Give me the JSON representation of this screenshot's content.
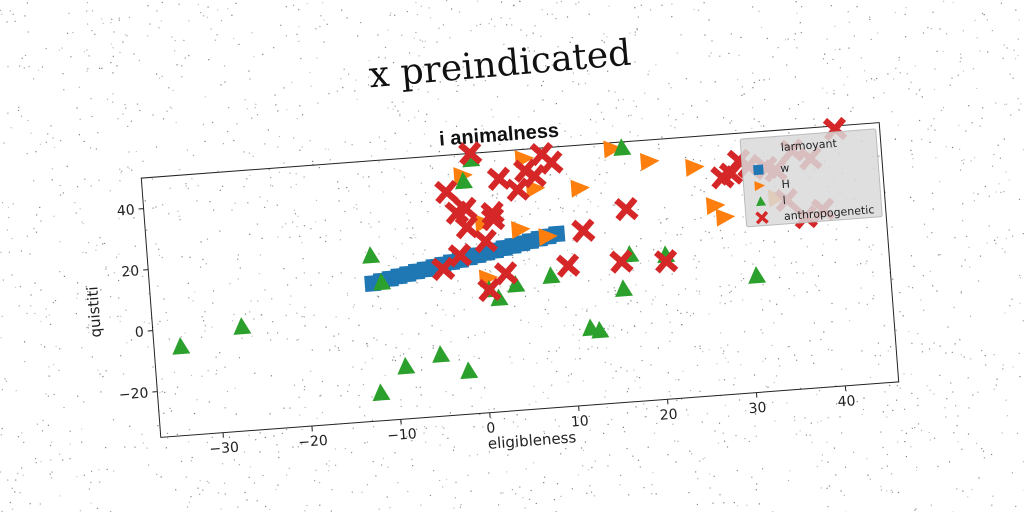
{
  "suptitle": "x preindicated",
  "chart_data": {
    "type": "scatter",
    "title": "i animalness",
    "xlabel": "eligibleness",
    "ylabel": "quistiti",
    "xlim": [
      -37,
      46
    ],
    "ylim": [
      -35,
      50
    ],
    "xticks": [
      -30,
      -20,
      -10,
      0,
      10,
      20,
      30,
      40
    ],
    "yticks": [
      -20,
      0,
      20,
      40
    ],
    "grid": false,
    "legend": {
      "title": "larmoyant",
      "position": "top-right"
    },
    "colors": {
      "w": "#1f77b4",
      "H": "#ff7f0e",
      "l": "#2ca02c",
      "anthropogenetic": "#d62728"
    },
    "series": [
      {
        "name": "w",
        "marker": "square",
        "x": [
          -12,
          -11,
          -10,
          -9,
          -8,
          -7,
          -6,
          -5,
          -4,
          -3,
          -2,
          -1,
          0,
          1,
          2,
          3,
          4,
          5,
          6,
          7,
          8,
          9
        ],
        "y": [
          10,
          10.6,
          11.1,
          11.7,
          12.2,
          12.8,
          13.3,
          13.9,
          14.4,
          15,
          15.5,
          16.1,
          16.6,
          17.2,
          17.7,
          18.3,
          18.8,
          19.4,
          19.9,
          20.5,
          21,
          21.6
        ]
      },
      {
        "name": "H",
        "marker": "triangle-right",
        "x": [
          -1,
          1,
          1,
          5,
          6,
          7,
          8,
          12,
          14,
          15,
          16,
          19,
          20,
          24,
          25,
          27,
          27,
          28,
          34,
          40
        ],
        "y": [
          43,
          27,
          9,
          24,
          47,
          37,
          21,
          36,
          55,
          53,
          48,
          52,
          43,
          53,
          40,
          27,
          52,
          23,
          28,
          53
        ]
      },
      {
        "name": "l",
        "marker": "triangle-up",
        "x": [
          -34,
          -27,
          -12,
          -12,
          -11,
          -9,
          -5,
          -2,
          -1,
          0,
          1,
          2,
          4,
          8,
          12,
          13,
          16,
          17,
          17,
          21,
          31
        ],
        "y": [
          -6,
          -1,
          19,
          -26,
          10,
          -18,
          -15,
          -21,
          41,
          48,
          5,
          2,
          6,
          8,
          -10,
          -11,
          2,
          13,
          48,
          12,
          3
        ]
      },
      {
        "name": "anthropogenetic",
        "marker": "x",
        "x": [
          -4,
          -3,
          -2,
          -2,
          -1,
          -1,
          0,
          1,
          1,
          2,
          2,
          3,
          3,
          5,
          6,
          7,
          8,
          9,
          10,
          12,
          16,
          17,
          21,
          21,
          28,
          29,
          30,
          31,
          33,
          34,
          35,
          36,
          37,
          38,
          39,
          41
        ],
        "y": [
          13,
          38,
          17,
          31,
          32,
          26,
          50,
          21,
          5,
          28,
          30,
          41,
          10,
          37,
          43,
          41,
          48,
          45,
          11,
          22,
          11,
          28,
          10,
          56,
          36,
          37,
          41,
          39,
          38,
          37,
          27,
          43,
          21,
          40,
          23,
          49
        ]
      }
    ]
  }
}
